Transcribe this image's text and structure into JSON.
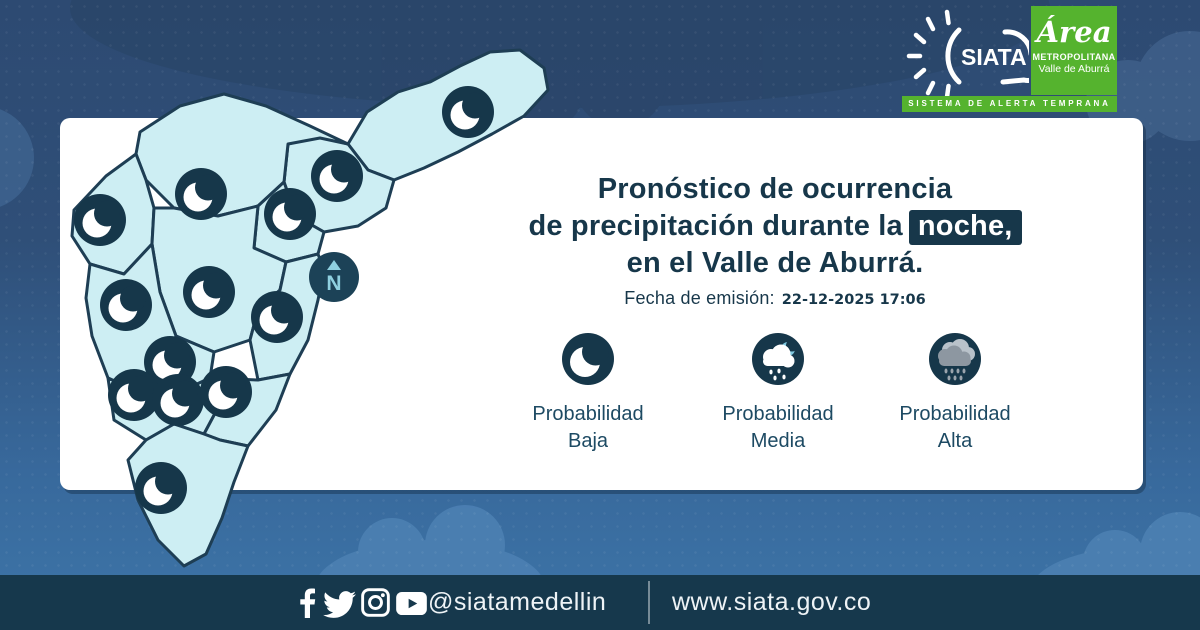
{
  "brand": {
    "siata": {
      "name": "SIATA",
      "tagline": "SISTEMA DE ALERTA TEMPRANA"
    },
    "area_metropolitana": {
      "script": "Área",
      "line1": "METROPOLITANA",
      "line2": "Valle de Aburrá"
    }
  },
  "card": {
    "title": {
      "line1": "Pronóstico de ocurrencia",
      "line2_prefix": "de precipitación durante la",
      "highlight": "noche,",
      "line3": "en el Valle de Aburrá."
    },
    "emission": {
      "label": "Fecha de emisión:",
      "value": "22-12-2025 17:06"
    },
    "legend": [
      {
        "icon": "moon-icon",
        "line1": "Probabilidad",
        "line2": "Baja"
      },
      {
        "icon": "rain-cloud-moon-icon",
        "line1": "Probabilidad",
        "line2": "Media"
      },
      {
        "icon": "storm-cloud-rain-icon",
        "line1": "Probabilidad",
        "line2": "Alta"
      }
    ]
  },
  "map": {
    "compass": "N",
    "marker_icon": "moon-icon",
    "marker_meaning": "Probabilidad Baja",
    "markers": [
      [
        406,
        64
      ],
      [
        275,
        128
      ],
      [
        139,
        146
      ],
      [
        228,
        166
      ],
      [
        38,
        172
      ],
      [
        147,
        244
      ],
      [
        64,
        257
      ],
      [
        215,
        269
      ],
      [
        108,
        314
      ],
      [
        72,
        347
      ],
      [
        116,
        352
      ],
      [
        164,
        344
      ],
      [
        99,
        440
      ]
    ]
  },
  "footer": {
    "social_icons": [
      "facebook-icon",
      "twitter-icon",
      "instagram-icon",
      "youtube-icon"
    ],
    "handle": "@siatamedellin",
    "website": "www.siata.gov.co"
  },
  "colors": {
    "bg_top": "#2d4a72",
    "bg_bottom": "#3d75a8",
    "footer_bar": "#16384c",
    "accent_navy": "#17374a",
    "map_fill": "#cdeef3",
    "map_stroke": "#1e3e54",
    "brand_green": "#55b32e",
    "legend_text": "#1d4a63",
    "moon_media_blue": "#7fc8e0",
    "cloud_light_gray": "#b9c2ca",
    "cloud_dark_gray": "#8d97a1"
  }
}
